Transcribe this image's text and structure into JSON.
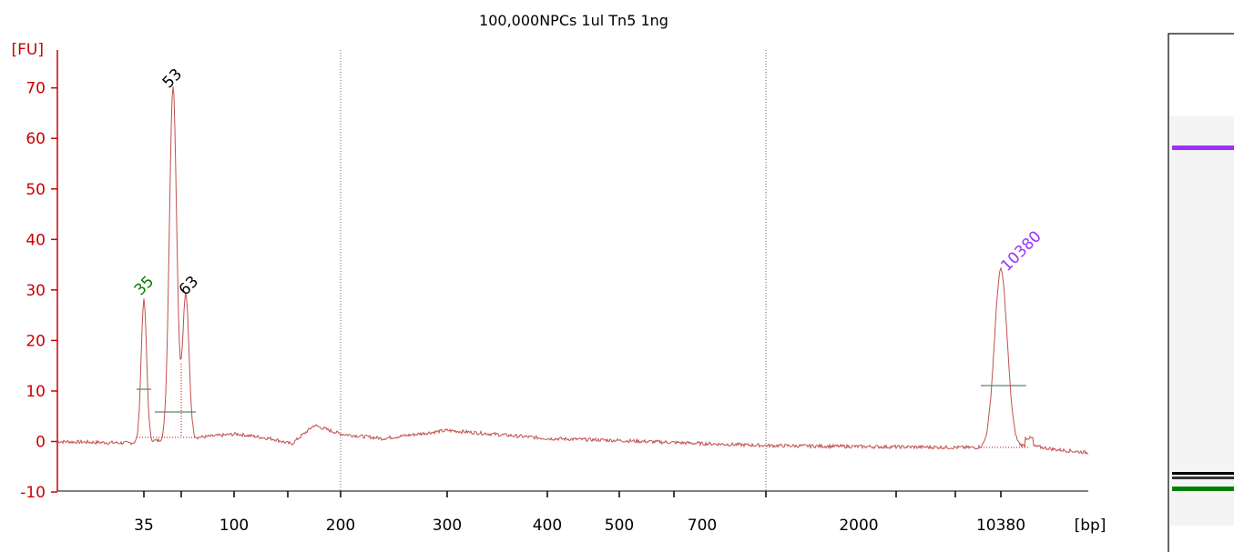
{
  "chart_data": {
    "type": "line",
    "title": "100,000NPCs 1ul Tn5 1ng",
    "ylabel": "[FU]",
    "xlabel": "[bp]",
    "ylim": [
      -10,
      75
    ],
    "yticks": [
      -10,
      0,
      10,
      20,
      30,
      40,
      50,
      60,
      70
    ],
    "xticks": [
      "35",
      "100",
      "200",
      "300",
      "400",
      "500",
      "700",
      "2000",
      "10380"
    ],
    "grid": false,
    "series": [
      {
        "color": "#c0504d",
        "points": [
          [
            35,
            28
          ],
          [
            53,
            70
          ],
          [
            63,
            28.5
          ],
          [
            100,
            1.5
          ],
          [
            150,
            3.2
          ],
          [
            200,
            1.5
          ],
          [
            300,
            2.2
          ],
          [
            400,
            0.6
          ],
          [
            500,
            0.2
          ],
          [
            700,
            -0.4
          ],
          [
            1000,
            -0.8
          ],
          [
            2000,
            -1.0
          ],
          [
            10380,
            35
          ],
          [
            15000,
            -2
          ]
        ]
      }
    ],
    "peaks": [
      {
        "label": "35",
        "size_bp": 35,
        "height": 28,
        "color": "#008000"
      },
      {
        "label": "53",
        "size_bp": 53,
        "height": 70,
        "color": "#000000"
      },
      {
        "label": "63",
        "size_bp": 63,
        "height": 28.5,
        "color": "#000000"
      },
      {
        "label": "10380",
        "size_bp": 10380,
        "height": 35,
        "color": "#9933ff"
      }
    ]
  },
  "gel": {
    "upper_marker_color": "#9b30ff",
    "lower_marker_color": "#008000",
    "band_color": "#000000"
  }
}
